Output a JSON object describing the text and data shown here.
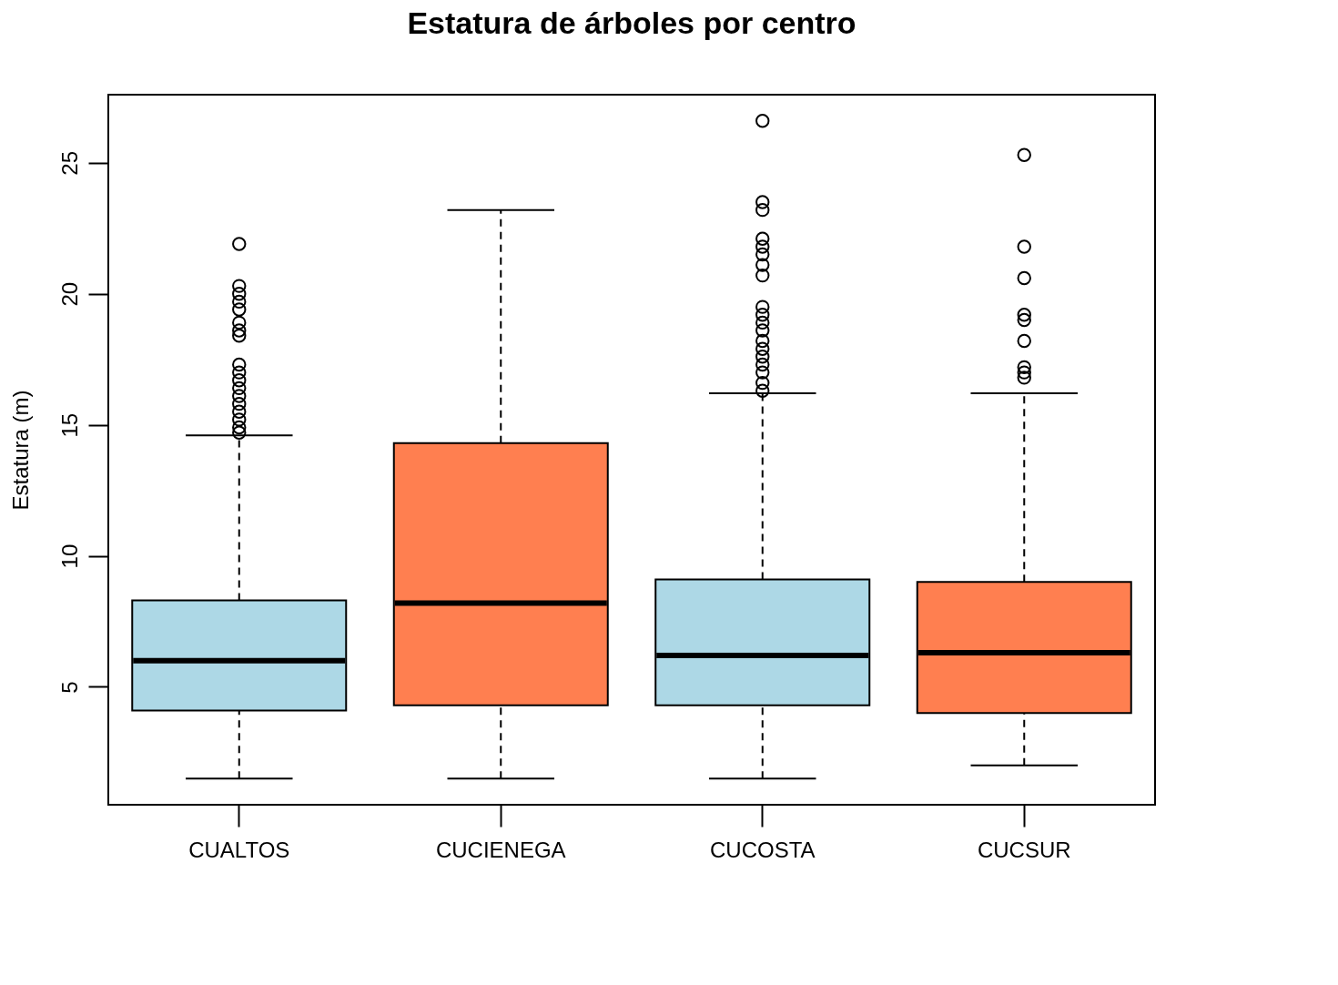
{
  "chart_data": {
    "type": "box",
    "title": "Estatura de árboles por centro",
    "ylabel": "Estatura (m)",
    "categories": [
      "CUALTOS",
      "CUCIENEGA",
      "CUCOSTA",
      "CUCSUR"
    ],
    "colors": [
      "#add8e6",
      "#ff7f50",
      "#add8e6",
      "#ff7f50"
    ],
    "boxes": [
      {
        "low": 1.5,
        "q1": 4.1,
        "median": 6.0,
        "q3": 8.3,
        "high": 14.6,
        "outliers": [
          21.9,
          20.3,
          20.0,
          19.7,
          19.4,
          18.9,
          18.6,
          18.4,
          17.3,
          17.0,
          16.7,
          16.4,
          16.1,
          15.8,
          15.5,
          15.2,
          14.9,
          14.7
        ]
      },
      {
        "low": 1.5,
        "q1": 4.3,
        "median": 8.2,
        "q3": 14.3,
        "high": 23.2
      },
      {
        "low": 1.5,
        "q1": 4.3,
        "median": 6.2,
        "q3": 9.1,
        "high": 16.2,
        "outliers": [
          26.6,
          23.5,
          23.2,
          22.1,
          21.8,
          21.5,
          21.1,
          20.7,
          19.5,
          19.2,
          18.9,
          18.6,
          18.2,
          17.9,
          17.6,
          17.3,
          17.0,
          16.6,
          16.3
        ]
      },
      {
        "low": 2.0,
        "q1": 4.0,
        "median": 6.3,
        "q3": 9.0,
        "high": 16.2,
        "outliers": [
          25.3,
          21.8,
          20.6,
          19.2,
          19.0,
          18.2,
          17.2,
          17.0,
          16.8
        ]
      }
    ],
    "ylim": [
      0.5,
      27.6
    ],
    "yticks": [
      5,
      10,
      15,
      20,
      25
    ],
    "grid": false
  }
}
